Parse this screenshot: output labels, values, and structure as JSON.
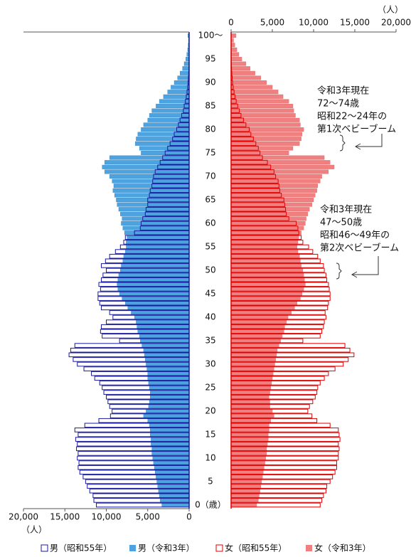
{
  "chart_data": {
    "type": "pyramid",
    "unit_label": "（人）",
    "categories": [
      "0（歳）",
      null,
      null,
      null,
      null,
      "5",
      null,
      null,
      null,
      null,
      "10",
      null,
      null,
      null,
      null,
      "15",
      null,
      null,
      null,
      null,
      "20",
      null,
      null,
      null,
      null,
      "25",
      null,
      null,
      null,
      null,
      "30",
      null,
      null,
      null,
      null,
      "35",
      null,
      null,
      null,
      null,
      "40",
      null,
      null,
      null,
      null,
      "45",
      null,
      null,
      null,
      null,
      "50",
      null,
      null,
      null,
      null,
      "55",
      null,
      null,
      null,
      null,
      "60",
      null,
      null,
      null,
      null,
      "65",
      null,
      null,
      null,
      null,
      "70",
      null,
      null,
      null,
      null,
      "75",
      null,
      null,
      null,
      null,
      "80",
      null,
      null,
      null,
      null,
      "85",
      null,
      null,
      null,
      null,
      "90",
      null,
      null,
      null,
      null,
      "95",
      null,
      null,
      null,
      null,
      "100～"
    ],
    "xlim": [
      0,
      20000
    ],
    "xticks": [
      0,
      {
        "value": 5000,
        "label": "5,000"
      },
      {
        "value": 10000,
        "label": "10,000"
      },
      {
        "value": 15000,
        "label": "15,000"
      },
      {
        "value": 20000,
        "label": "20,000"
      }
    ],
    "series": [
      {
        "name": "男（昭和55年）",
        "side": "left",
        "style": "outline",
        "color": "#1a1a9e",
        "values": [
          11200,
          11500,
          11600,
          12000,
          12300,
          12500,
          12800,
          13200,
          13400,
          13300,
          13500,
          13400,
          13600,
          13500,
          13700,
          13400,
          13800,
          12600,
          10900,
          9500,
          9300,
          9600,
          9800,
          10000,
          10300,
          10500,
          10800,
          11400,
          11800,
          12700,
          13500,
          14000,
          14500,
          14300,
          13800,
          8400,
          10500,
          10700,
          10600,
          10000,
          9200,
          9600,
          10600,
          10800,
          11000,
          11000,
          10700,
          10900,
          10600,
          10400,
          10000,
          10600,
          10100,
          9600,
          8900,
          8300,
          7900,
          7700,
          6600,
          5900,
          5800,
          5600,
          5300,
          5200,
          5000,
          5000,
          4800,
          4700,
          4500,
          4400,
          4300,
          4100,
          3800,
          3500,
          3200,
          2900,
          2600,
          2300,
          2000,
          1800,
          1500,
          1300,
          1100,
          900,
          700,
          600,
          450,
          350,
          250,
          180,
          130,
          90,
          60,
          40,
          25,
          15,
          10,
          6,
          4,
          2,
          2
        ]
      },
      {
        "name": "男（令和3年）",
        "side": "left",
        "style": "fill",
        "color": "#4da3e0",
        "values": [
          3300,
          3500,
          3600,
          3700,
          3800,
          3900,
          4000,
          4100,
          4200,
          4300,
          4400,
          4500,
          4500,
          4600,
          4600,
          4700,
          4700,
          4800,
          5000,
          5500,
          5200,
          4900,
          4800,
          4700,
          4700,
          4800,
          4900,
          5000,
          5000,
          5100,
          5200,
          5300,
          5400,
          5500,
          5700,
          5900,
          6000,
          6200,
          6300,
          6400,
          6600,
          7000,
          7400,
          7700,
          8100,
          8400,
          8600,
          8700,
          8600,
          8500,
          8300,
          8200,
          8000,
          7900,
          7700,
          7600,
          7600,
          7500,
          7800,
          8000,
          8200,
          8100,
          8300,
          8500,
          8700,
          8800,
          9000,
          9200,
          9100,
          9300,
          9600,
          10200,
          10500,
          10200,
          9600,
          5800,
          6000,
          6500,
          6400,
          6200,
          5800,
          5500,
          5000,
          4800,
          4500,
          4000,
          3600,
          3100,
          2600,
          2200,
          1800,
          1400,
          1100,
          800,
          600,
          400,
          280,
          180,
          120,
          80,
          150
        ]
      },
      {
        "name": "女（昭和55年）",
        "side": "right",
        "style": "outline",
        "color": "#e00000",
        "values": [
          10800,
          11000,
          11200,
          11500,
          11600,
          12000,
          12300,
          12600,
          12800,
          12800,
          13000,
          13000,
          13100,
          13000,
          13200,
          13100,
          13000,
          12000,
          10400,
          9800,
          9300,
          9500,
          9900,
          10200,
          10400,
          10500,
          10800,
          11300,
          11800,
          12600,
          13600,
          14200,
          14900,
          14400,
          13800,
          8700,
          10800,
          11000,
          11200,
          11300,
          11500,
          11400,
          11700,
          11800,
          12000,
          12000,
          11900,
          11800,
          11600,
          11500,
          11300,
          11200,
          10800,
          10500,
          9900,
          9400,
          8700,
          8500,
          8200,
          8100,
          7900,
          7000,
          6700,
          6600,
          6500,
          6400,
          6100,
          5900,
          5800,
          5700,
          5400,
          5200,
          4800,
          4400,
          3800,
          3500,
          3300,
          3000,
          2700,
          2400,
          2200,
          1800,
          1500,
          1200,
          1000,
          800,
          620,
          480,
          360,
          260,
          180,
          130,
          90,
          60,
          40,
          25,
          15,
          10,
          6,
          4,
          3
        ]
      },
      {
        "name": "女（令和3年）",
        "side": "right",
        "style": "fill",
        "color": "#f07f80",
        "values": [
          3100,
          3300,
          3400,
          3500,
          3600,
          3700,
          3800,
          3900,
          4000,
          4100,
          4200,
          4300,
          4300,
          4400,
          4500,
          4500,
          4600,
          4600,
          4800,
          5200,
          5000,
          4700,
          4700,
          4600,
          4700,
          4800,
          4900,
          5000,
          5100,
          5200,
          5300,
          5400,
          5500,
          5600,
          5800,
          6000,
          6200,
          6400,
          6500,
          6700,
          6900,
          7300,
          7700,
          8000,
          8400,
          8600,
          8800,
          9000,
          8900,
          8800,
          8700,
          8500,
          8400,
          8300,
          8100,
          8000,
          8100,
          8200,
          8500,
          8800,
          9000,
          9100,
          9300,
          9500,
          9800,
          10000,
          10200,
          10400,
          10500,
          10800,
          11000,
          11800,
          12500,
          12000,
          11300,
          7000,
          7500,
          8300,
          8500,
          8600,
          8800,
          8400,
          8300,
          7800,
          7600,
          7500,
          7000,
          6300,
          5700,
          5000,
          4300,
          3600,
          2900,
          2300,
          1800,
          1300,
          950,
          700,
          450,
          300,
          600
        ]
      }
    ],
    "annotations": [
      {
        "lines": [
          "令和3年現在",
          "72～74歳",
          "昭和22～24年の",
          "第1次ベビーブーム"
        ]
      },
      {
        "lines": [
          "令和3年現在",
          "47～50歳",
          "昭和46～49年の",
          "第2次ベビーブーム"
        ]
      }
    ]
  }
}
